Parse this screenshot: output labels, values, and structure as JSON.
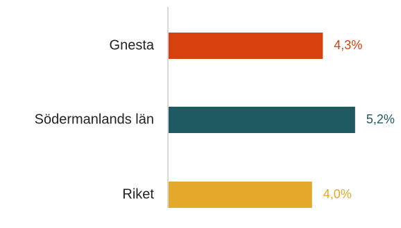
{
  "chart_data": {
    "type": "bar",
    "orientation": "horizontal",
    "categories": [
      "Gnesta",
      "Södermanlands län",
      "Riket"
    ],
    "values": [
      4.3,
      5.2,
      4.0
    ],
    "value_labels": [
      "4,3%",
      "5,2%",
      "4,0%"
    ],
    "colors": [
      "#d7410e",
      "#1f5961",
      "#e4a82a"
    ],
    "axis_color": "#d9d9d9",
    "xlim": [
      0,
      5.8
    ],
    "grid": false,
    "legend": "none"
  }
}
